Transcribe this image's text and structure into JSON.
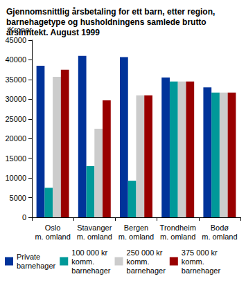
{
  "chart_data": {
    "type": "bar",
    "title": "Gjennomsnittlig årsbetaling for ett barn, etter region, barnehagetype og husholdningens samlede brutto årsinntekt. August 1999",
    "y_label": "Kroner",
    "categories": [
      "Oslo m. omland",
      "Stavanger m. omland",
      "Bergen m. omland",
      "Trondheim m. omland",
      "Bodø m. omland"
    ],
    "series": [
      {
        "name": "Private barnehager",
        "color": "#00339a",
        "values": [
          38500,
          41000,
          40700,
          35500,
          33000
        ]
      },
      {
        "name": "100 000 kr komm. barnehager",
        "color": "#009999",
        "values": [
          7500,
          13000,
          9300,
          34500,
          31700
        ]
      },
      {
        "name": "250 000 kr komm. barnehager",
        "color": "#cccccc",
        "values": [
          35700,
          22500,
          31000,
          34500,
          31700
        ]
      },
      {
        "name": "375 000 kr komm. barnehager",
        "color": "#990000",
        "values": [
          37500,
          29700,
          31000,
          34500,
          31700
        ]
      }
    ],
    "ylim": [
      0,
      45000
    ],
    "yticks": [
      0,
      5000,
      10000,
      15000,
      20000,
      25000,
      30000,
      35000,
      40000,
      45000
    ],
    "grid": false,
    "legend": "bottom"
  }
}
